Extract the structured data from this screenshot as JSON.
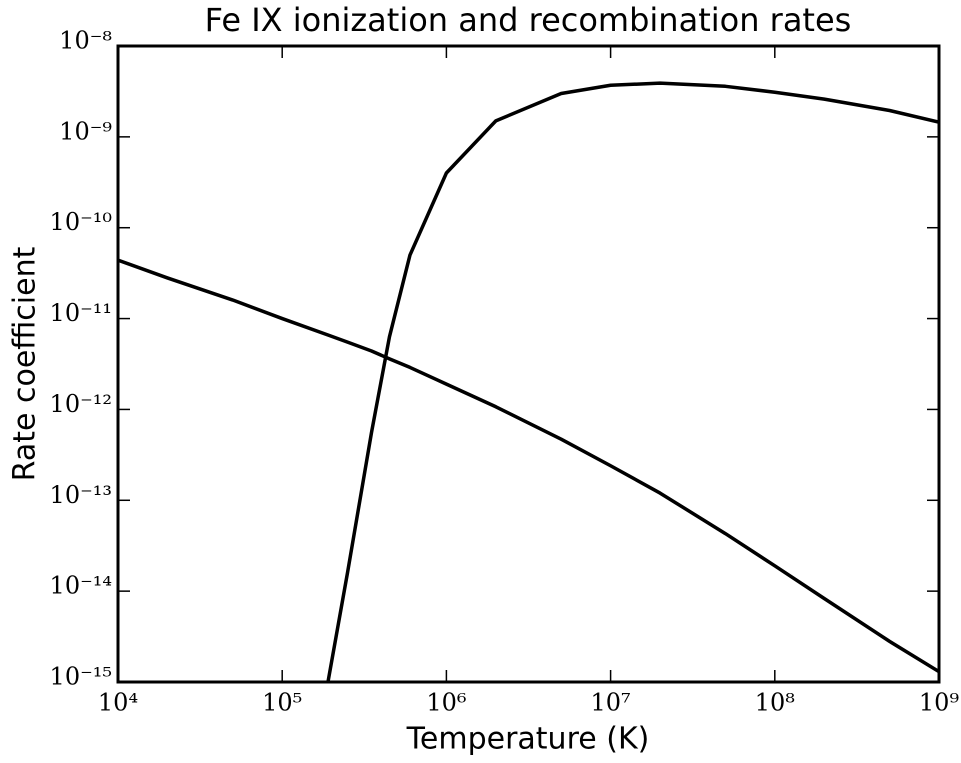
{
  "chart_data": {
    "type": "line",
    "title": "Fe IX ionization and recombination rates",
    "x_label": "Temperature (K)",
    "y_label": "Rate coefficient",
    "xscale": "log",
    "yscale": "log",
    "xlim": [
      10000,
      1000000000
    ],
    "ylim": [
      1e-15,
      1e-08
    ],
    "xticks": [
      {
        "value": 10000,
        "label": "10⁴"
      },
      {
        "value": 100000,
        "label": "10⁵"
      },
      {
        "value": 1000000,
        "label": "10⁶"
      },
      {
        "value": 10000000,
        "label": "10⁷"
      },
      {
        "value": 100000000,
        "label": "10⁸"
      },
      {
        "value": 1000000000,
        "label": "10⁹"
      }
    ],
    "yticks": [
      {
        "value": 1e-15,
        "label": "10⁻¹⁵"
      },
      {
        "value": 1e-14,
        "label": "10⁻¹⁴"
      },
      {
        "value": 1e-13,
        "label": "10⁻¹³"
      },
      {
        "value": 1e-12,
        "label": "10⁻¹²"
      },
      {
        "value": 1e-11,
        "label": "10⁻¹¹"
      },
      {
        "value": 1e-10,
        "label": "10⁻¹⁰"
      },
      {
        "value": 1e-09,
        "label": "10⁻⁹"
      },
      {
        "value": 1e-08,
        "label": "10⁻⁸"
      }
    ],
    "grid": false,
    "x": [
      10000,
      20000,
      50000,
      100000,
      190000,
      250000,
      350000,
      450000,
      600000,
      1000000,
      2000000,
      5000000,
      10000000,
      20000000,
      50000000,
      100000000,
      200000000,
      500000000,
      1000000000
    ],
    "series": [
      {
        "color": "#000000",
        "values": [
          null,
          null,
          null,
          null,
          1e-15,
          1.6e-14,
          5.6e-13,
          6.3e-12,
          5e-11,
          4e-10,
          1.5e-09,
          3e-09,
          3.7e-09,
          3.9e-09,
          3.6e-09,
          3.1e-09,
          2.6e-09,
          1.95e-09,
          1.45e-09
        ]
      },
      {
        "color": "#000000",
        "values": [
          4.4e-11,
          2.8e-11,
          1.6e-11,
          1e-11,
          6.6e-12,
          5.5e-12,
          4.4e-12,
          3.6e-12,
          2.9e-12,
          1.9e-12,
          1.07e-12,
          4.7e-13,
          2.4e-13,
          1.2e-13,
          4.3e-14,
          1.9e-14,
          8.3e-15,
          2.8e-15,
          1.3e-15
        ]
      }
    ]
  }
}
